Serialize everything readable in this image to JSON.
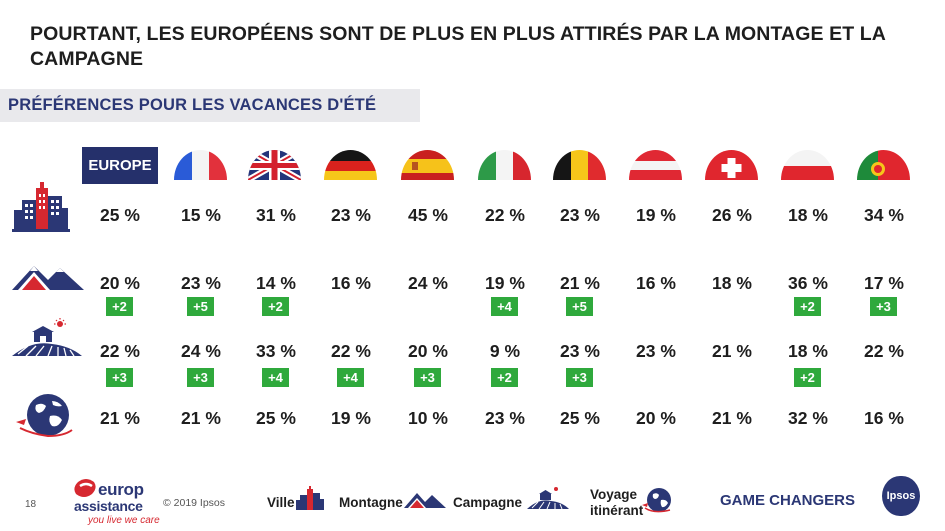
{
  "title": "POURTANT, LES EUROPÉENS SONT DE PLUS EN PLUS ATTIRÉS PAR LA MONTAGE ET LA CAMPAGNE",
  "subtitle": "PRÉFÉRENCES POUR LES VACANCES D'ÉTÉ",
  "europe_label": "EUROPE",
  "countries": [
    "Europe",
    "France",
    "UK",
    "Germany",
    "Spain",
    "Italy",
    "Belgium",
    "Austria",
    "Switzerland",
    "Poland",
    "Portugal"
  ],
  "rows": [
    {
      "name": "ville",
      "values": [
        "25 %",
        "15 %",
        "31 %",
        "23 %",
        "45 %",
        "22 %",
        "23 %",
        "19 %",
        "26 %",
        "18 %",
        "34 %"
      ],
      "badges": [
        "",
        "",
        "",
        "",
        "",
        "",
        "",
        "",
        "",
        "",
        ""
      ]
    },
    {
      "name": "montagne",
      "values": [
        "20 %",
        "23 %",
        "14 %",
        "16 %",
        "24 %",
        "19 %",
        "21 %",
        "16 %",
        "18 %",
        "36 %",
        "17 %"
      ],
      "badges": [
        "+2",
        "+5",
        "+2",
        "",
        "",
        "+4",
        "+5",
        "",
        "",
        "+2",
        "+3"
      ]
    },
    {
      "name": "campagne",
      "values": [
        "22 %",
        "24 %",
        "33 %",
        "22 %",
        "20 %",
        "9 %",
        "23 %",
        "23 %",
        "21 %",
        "18 %",
        "22 %"
      ],
      "badges": [
        "+3",
        "+3",
        "+4",
        "+4",
        "+3",
        "+2",
        "+3",
        "",
        "",
        "+2",
        ""
      ]
    },
    {
      "name": "voyage-itinerant",
      "values": [
        "21 %",
        "21 %",
        "25 %",
        "19 %",
        "10 %",
        "23 %",
        "25 %",
        "20 %",
        "21 %",
        "32 %",
        "16 %"
      ],
      "badges": [
        "",
        "",
        "",
        "",
        "",
        "",
        "",
        "",
        "",
        "",
        ""
      ]
    }
  ],
  "footer": {
    "page_number": "18",
    "copyright": "© 2019 Ipsos",
    "logo_line1": "europ",
    "logo_line2": "assistance",
    "logo_tagline": "you live we care",
    "legend_ville": "Ville",
    "legend_montagne": "Montagne",
    "legend_campagne": "Campagne",
    "legend_voyage_1": "Voyage",
    "legend_voyage_2": "itinérant",
    "game_changers": "GAME CHANGERS",
    "ipsos": "Ipsos"
  },
  "colors": {
    "navy": "#25306b",
    "accent_red": "#d62830",
    "badge_green": "#2fa93c"
  }
}
